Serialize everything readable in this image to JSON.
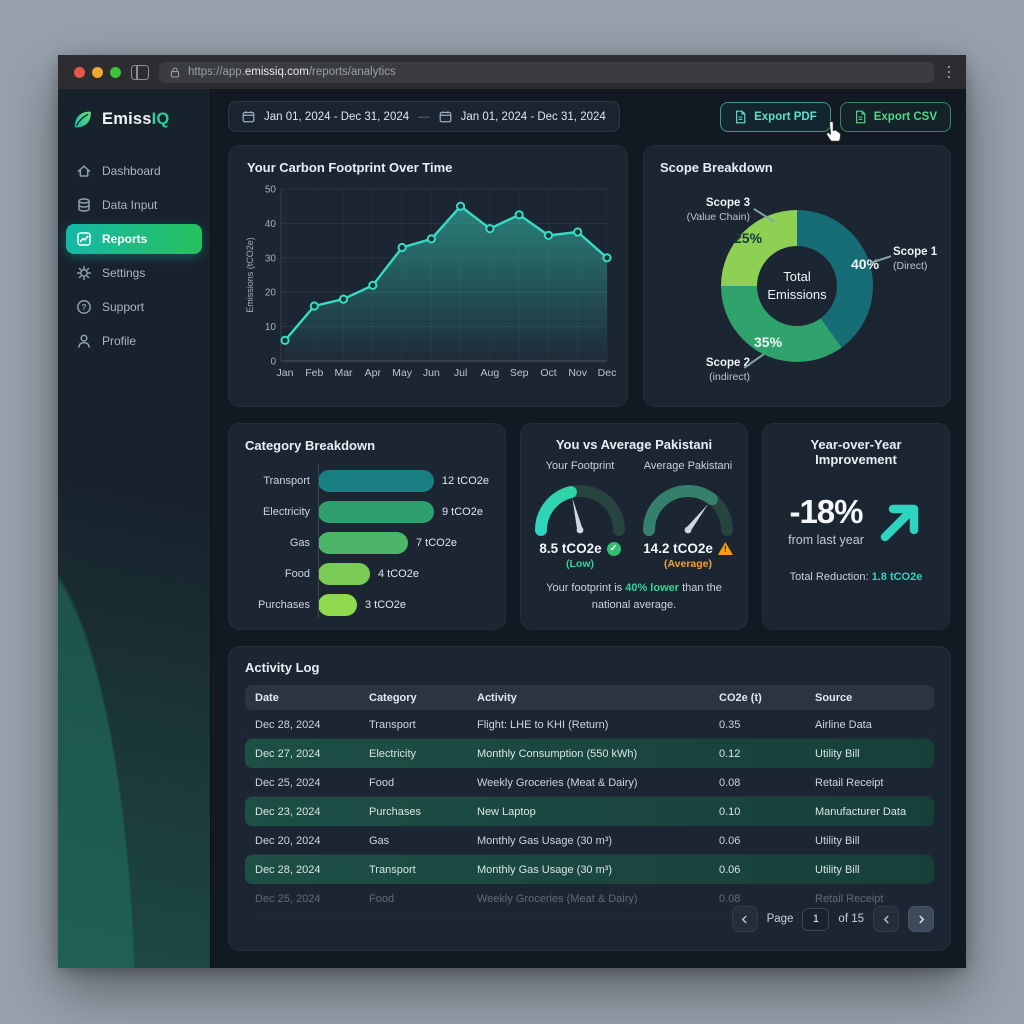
{
  "browser": {
    "url_prefix": "https://app.",
    "url_domain": "emissiq.com",
    "url_path": "/reports/analytics",
    "traffic_colors": [
      "#e9564b",
      "#f0a832",
      "#3fc23c"
    ]
  },
  "sidebar": {
    "brand": {
      "name_primary": "Emiss",
      "name_accent": "IQ"
    },
    "items": [
      {
        "label": "Dashboard",
        "icon": "home",
        "active": false
      },
      {
        "label": "Data Input",
        "icon": "database",
        "active": false
      },
      {
        "label": "Reports",
        "icon": "chart",
        "active": true
      },
      {
        "label": "Settings",
        "icon": "gear",
        "active": false
      },
      {
        "label": "Support",
        "icon": "question",
        "active": false
      },
      {
        "label": "Profile",
        "icon": "person",
        "active": false
      }
    ]
  },
  "topbar": {
    "date_range_start": "Jan 01, 2024 - Dec 31, 2024",
    "range_separator": "—",
    "date_range_end": "Jan 01, 2024 - Dec 31, 2024",
    "export_pdf_label": "Export PDF",
    "export_csv_label": "Export CSV"
  },
  "chart_data": [
    {
      "type": "line",
      "title": "Your Carbon Footprint Over Time",
      "x": [
        "Jan",
        "Feb",
        "Mar",
        "Apr",
        "May",
        "Jun",
        "Jul",
        "Aug",
        "Sep",
        "Oct",
        "Nov",
        "Dec"
      ],
      "values": [
        6,
        16,
        18,
        22,
        33,
        35.5,
        45,
        38.5,
        42.5,
        36.5,
        37.5,
        30
      ],
      "ylabel": "Emissions (tCO2e)",
      "ylim": [
        0,
        50
      ],
      "yticks": [
        0,
        10,
        20,
        30,
        40,
        50
      ],
      "grid": true,
      "line_color": "#38dcc3",
      "marker_fill": "#12343a"
    },
    {
      "type": "pie",
      "title": "Scope Breakdown",
      "center_line1": "Total",
      "center_line2": "Emissions",
      "legend_position": "around",
      "segments": [
        {
          "name": "Scope 1",
          "sub": "(Direct)",
          "value": 40,
          "pct_label": "40%",
          "color": "#166d76",
          "pct_color": "#eef4f6"
        },
        {
          "name": "Scope 2",
          "sub": "(indirect)",
          "value": 35,
          "pct_label": "35%",
          "color": "#2fa36b",
          "pct_color": "#eef4f6"
        },
        {
          "name": "Scope 3",
          "sub": "(Value Chain)",
          "value": 25,
          "pct_label": "25%",
          "color": "#8ed054",
          "pct_color": "#173642"
        }
      ]
    },
    {
      "type": "bar",
      "title": "Category Breakdown",
      "orientation": "horizontal",
      "categories": [
        "Transport",
        "Electricity",
        "Gas",
        "Food",
        "Purchases"
      ],
      "values": [
        12,
        9,
        7,
        4,
        3
      ],
      "value_labels": [
        "12 tCO2e",
        "9 tCO2e",
        "7 tCO2e",
        "4 tCO2e",
        "3 tCO2e"
      ],
      "colors": [
        "#1a7f82",
        "#2f9e6e",
        "#4cb567",
        "#7bcb57",
        "#8fd94f"
      ],
      "xlim": [
        0,
        12
      ]
    },
    {
      "type": "gauge",
      "title": "You vs Average Pakistani",
      "range": [
        0,
        20
      ],
      "gauges": [
        {
          "label": "Your Footprint",
          "value": 8.5,
          "display": "8.5 tCO2e",
          "status": "(Low)",
          "status_color": "#34d399",
          "icon": "check",
          "fill_colors": [
            "#2dd4bf",
            "#34d399"
          ],
          "track_color": "#27443f"
        },
        {
          "label": "Average Pakistani",
          "value": 14.2,
          "display": "14.2 tCO2e",
          "status": "(Average)",
          "status_color": "#f0a13a",
          "icon": "warning",
          "fill_colors": [
            "#35806c",
            "#35806c"
          ],
          "track_color": "#27443f"
        }
      ],
      "note_prefix": "Your footprint is ",
      "note_highlight": "40% lower",
      "note_suffix": " than the national average."
    }
  ],
  "yoy": {
    "title": "Year-over-Year Improvement",
    "delta": "-18%",
    "caption": "from last year",
    "reduction_label": "Total Reduction:",
    "reduction_value": "1.8 tCO2e",
    "accent": "#2dd4bf"
  },
  "activity": {
    "title": "Activity Log",
    "columns": [
      "Date",
      "Category",
      "Activity",
      "CO2e (t)",
      "Source"
    ],
    "rows": [
      {
        "date": "Dec 28, 2024",
        "category": "Transport",
        "activity": "Flight: LHE to KHI (Return)",
        "co2e": "0.35",
        "source": "Airline Data",
        "highlight": false,
        "clipped": false
      },
      {
        "date": "Dec 27, 2024",
        "category": "Electricity",
        "activity": "Monthly Consumption (550 kWh)",
        "co2e": "0.12",
        "source": "Utility Bill",
        "highlight": true,
        "clipped": false
      },
      {
        "date": "Dec 25, 2024",
        "category": "Food",
        "activity": "Weekly Groceries (Meat & Dairy)",
        "co2e": "0.08",
        "source": "Retail Receipt",
        "highlight": false,
        "clipped": false
      },
      {
        "date": "Dec 23, 2024",
        "category": "Purchases",
        "activity": "New Laptop",
        "co2e": "0.10",
        "source": "Manufacturer Data",
        "highlight": true,
        "clipped": false
      },
      {
        "date": "Dec 20, 2024",
        "category": "Gas",
        "activity": "Monthly Gas Usage (30 m³)",
        "co2e": "0.06",
        "source": "Utility Bill",
        "highlight": false,
        "clipped": false
      },
      {
        "date": "Dec 28, 2024",
        "category": "Transport",
        "activity": "Monthly Gas Usage (30 m³)",
        "co2e": "0.06",
        "source": "Utility Bill",
        "highlight": true,
        "clipped": false
      },
      {
        "date": "Dec 25, 2024",
        "category": "Food",
        "activity": "Weekly Groceries (Meat & Dairy)",
        "co2e": "0.08",
        "source": "Retail Receipt",
        "highlight": false,
        "clipped": true
      }
    ],
    "pagination": {
      "page_label": "Page",
      "page_value": "1",
      "of_label": "of 15"
    }
  }
}
